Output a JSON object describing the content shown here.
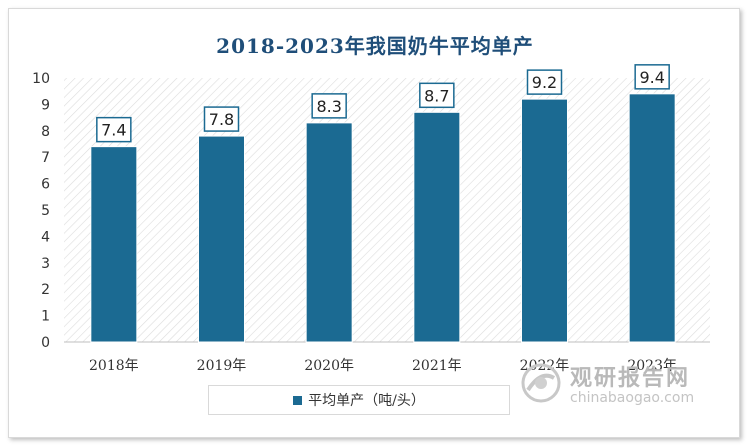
{
  "chart_data": {
    "type": "bar",
    "title": "2018-2023年我国奶牛平均单产",
    "categories": [
      "2018年",
      "2019年",
      "2020年",
      "2021年",
      "2022年",
      "2023年"
    ],
    "values": [
      7.4,
      7.8,
      8.3,
      8.7,
      9.2,
      9.4
    ],
    "series": [
      {
        "name": "平均单产（吨/头）",
        "values": [
          7.4,
          7.8,
          8.3,
          8.7,
          9.2,
          9.4
        ]
      }
    ],
    "ylim": [
      0,
      10
    ],
    "yticks": [
      0,
      1,
      2,
      3,
      4,
      5,
      6,
      7,
      8,
      9,
      10
    ],
    "xlabel": "",
    "ylabel": "",
    "grid": false,
    "legend_position": "bottom",
    "data_labels": true,
    "bar_color": "#1b6a92",
    "title_color": "#1f4e79"
  },
  "watermark": {
    "name": "观研报告网",
    "url": "chinabaogao.com"
  }
}
